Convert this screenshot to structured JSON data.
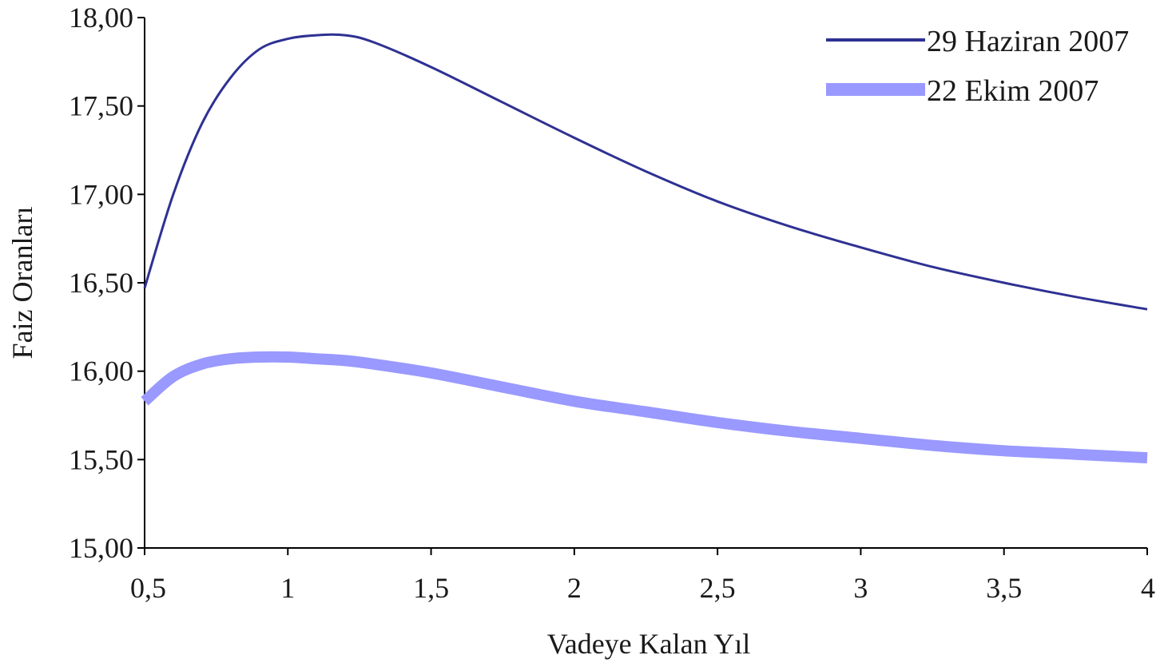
{
  "chart_data": {
    "type": "line",
    "title": "",
    "xlabel": "Vadeye Kalan Yıl",
    "ylabel": "Faiz Oranları",
    "xlim": [
      0.5,
      4
    ],
    "ylim": [
      15.0,
      18.0
    ],
    "x_ticks": [
      0.5,
      1,
      1.5,
      2,
      2.5,
      3,
      3.5,
      4
    ],
    "x_tick_labels": [
      "0,5",
      "1",
      "1,5",
      "2",
      "2,5",
      "3",
      "3,5",
      "4"
    ],
    "y_ticks": [
      15.0,
      15.5,
      16.0,
      16.5,
      17.0,
      17.5,
      18.0
    ],
    "y_tick_labels": [
      "15,00",
      "15,50",
      "16,00",
      "16,50",
      "17,00",
      "17,50",
      "18,00"
    ],
    "grid": false,
    "legend_position": "top-right",
    "series": [
      {
        "name": "29 Haziran 2007",
        "color": "#2e3192",
        "style": "thin",
        "x": [
          0.5,
          0.6,
          0.7,
          0.8,
          0.9,
          1.0,
          1.1,
          1.2,
          1.3,
          1.5,
          1.75,
          2.0,
          2.25,
          2.5,
          2.75,
          3.0,
          3.25,
          3.5,
          3.75,
          4.0
        ],
        "y": [
          16.47,
          17.0,
          17.4,
          17.66,
          17.82,
          17.88,
          17.9,
          17.9,
          17.86,
          17.72,
          17.52,
          17.32,
          17.13,
          16.96,
          16.82,
          16.7,
          16.59,
          16.5,
          16.42,
          16.35
        ]
      },
      {
        "name": "22 Ekim 2007",
        "color": "#9999ff",
        "style": "thick",
        "x": [
          0.5,
          0.6,
          0.7,
          0.8,
          0.9,
          1.0,
          1.1,
          1.2,
          1.3,
          1.5,
          1.75,
          2.0,
          2.25,
          2.5,
          2.75,
          3.0,
          3.25,
          3.5,
          3.75,
          4.0
        ],
        "y": [
          15.83,
          15.97,
          16.04,
          16.07,
          16.08,
          16.08,
          16.07,
          16.06,
          16.04,
          15.99,
          15.91,
          15.83,
          15.77,
          15.71,
          15.66,
          15.62,
          15.58,
          15.55,
          15.53,
          15.51
        ]
      }
    ]
  }
}
